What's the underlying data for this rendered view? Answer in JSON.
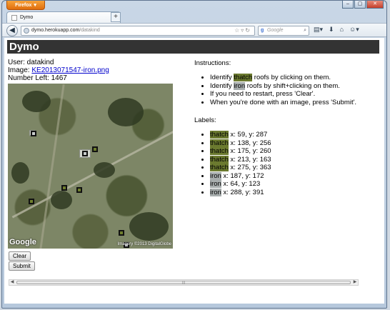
{
  "browser": {
    "app_button_label": "Firefox",
    "tab_title": "Dymo",
    "tab_close": "×",
    "new_tab": "+",
    "url_host": "dymo.herokuapp.com",
    "url_path": "/datakind",
    "search_placeholder": "Google",
    "window_controls": [
      "–",
      "▢",
      "✕"
    ]
  },
  "page": {
    "header": "Dymo",
    "user_label": "User: datakind",
    "image_label": "Image: ",
    "image_link": "KE2013071547-iron.png",
    "number_left": "Number Left: 1467",
    "clear_button": "Clear",
    "submit_button": "Submit",
    "map_logo": "Google",
    "map_credit": "Imagery ©2013 DigitalGlobe"
  },
  "instructions": {
    "heading": "Instructions:",
    "items": [
      {
        "pre": "Identify ",
        "hl": "thatch",
        "hl_type": "thatch",
        "post": " roofs by clicking on them."
      },
      {
        "pre": "Identify ",
        "hl": "iron",
        "hl_type": "iron",
        "post": " roofs by shift+clicking on them."
      },
      {
        "pre": "If you need to restart, press 'Clear'.",
        "hl": "",
        "hl_type": "",
        "post": ""
      },
      {
        "pre": "When you're done with an image, press 'Submit'.",
        "hl": "",
        "hl_type": "",
        "post": ""
      }
    ]
  },
  "labels": {
    "heading": "Labels:",
    "items": [
      {
        "type": "thatch",
        "coords": " x: 59, y: 287"
      },
      {
        "type": "thatch",
        "coords": " x: 138, y: 256"
      },
      {
        "type": "thatch",
        "coords": " x: 175, y: 260"
      },
      {
        "type": "thatch",
        "coords": " x: 213, y: 163"
      },
      {
        "type": "thatch",
        "coords": " x: 275, y: 363"
      },
      {
        "type": "iron",
        "coords": " x: 187, y: 172"
      },
      {
        "type": "iron",
        "coords": " x: 64, y: 123"
      },
      {
        "type": "iron",
        "coords": " x: 288, y: 391"
      }
    ]
  },
  "colors": {
    "thatch": "#6b7a2f",
    "iron": "#a7adad",
    "header_bg": "#333333"
  }
}
